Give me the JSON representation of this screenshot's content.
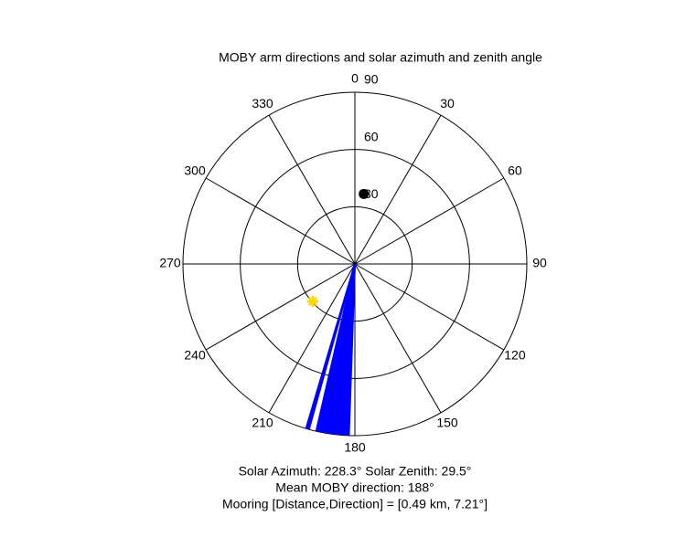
{
  "chart_data": {
    "type": "polar",
    "title": "MOBY arm directions and solar azimuth and zenith angle",
    "annotations": [
      "Solar Azimuth: 228.3° Solar Zenith: 29.5°",
      "Mean MOBY direction: 188°",
      "Mooring [Distance,Direction] = [0.49 km, 7.21°]"
    ],
    "rlim": [
      0,
      90
    ],
    "rticks": [
      30,
      60,
      90
    ],
    "theta_ticks": [
      0,
      30,
      60,
      90,
      120,
      150,
      180,
      210,
      240,
      270,
      300,
      330
    ],
    "arms": {
      "color": "#0000ff",
      "theta": [
        182,
        183,
        184,
        185,
        186,
        187,
        188,
        189,
        190,
        191,
        192,
        193,
        195.5,
        196.5
      ],
      "r": [
        90,
        90,
        90,
        90,
        90,
        90,
        90,
        90,
        90,
        90,
        90,
        90,
        90,
        90
      ]
    },
    "sun": {
      "color": "#ffd700",
      "theta": 228.3,
      "r": 29.5
    },
    "mooring": {
      "color": "#000000",
      "theta": 7.21,
      "r": 37
    }
  }
}
